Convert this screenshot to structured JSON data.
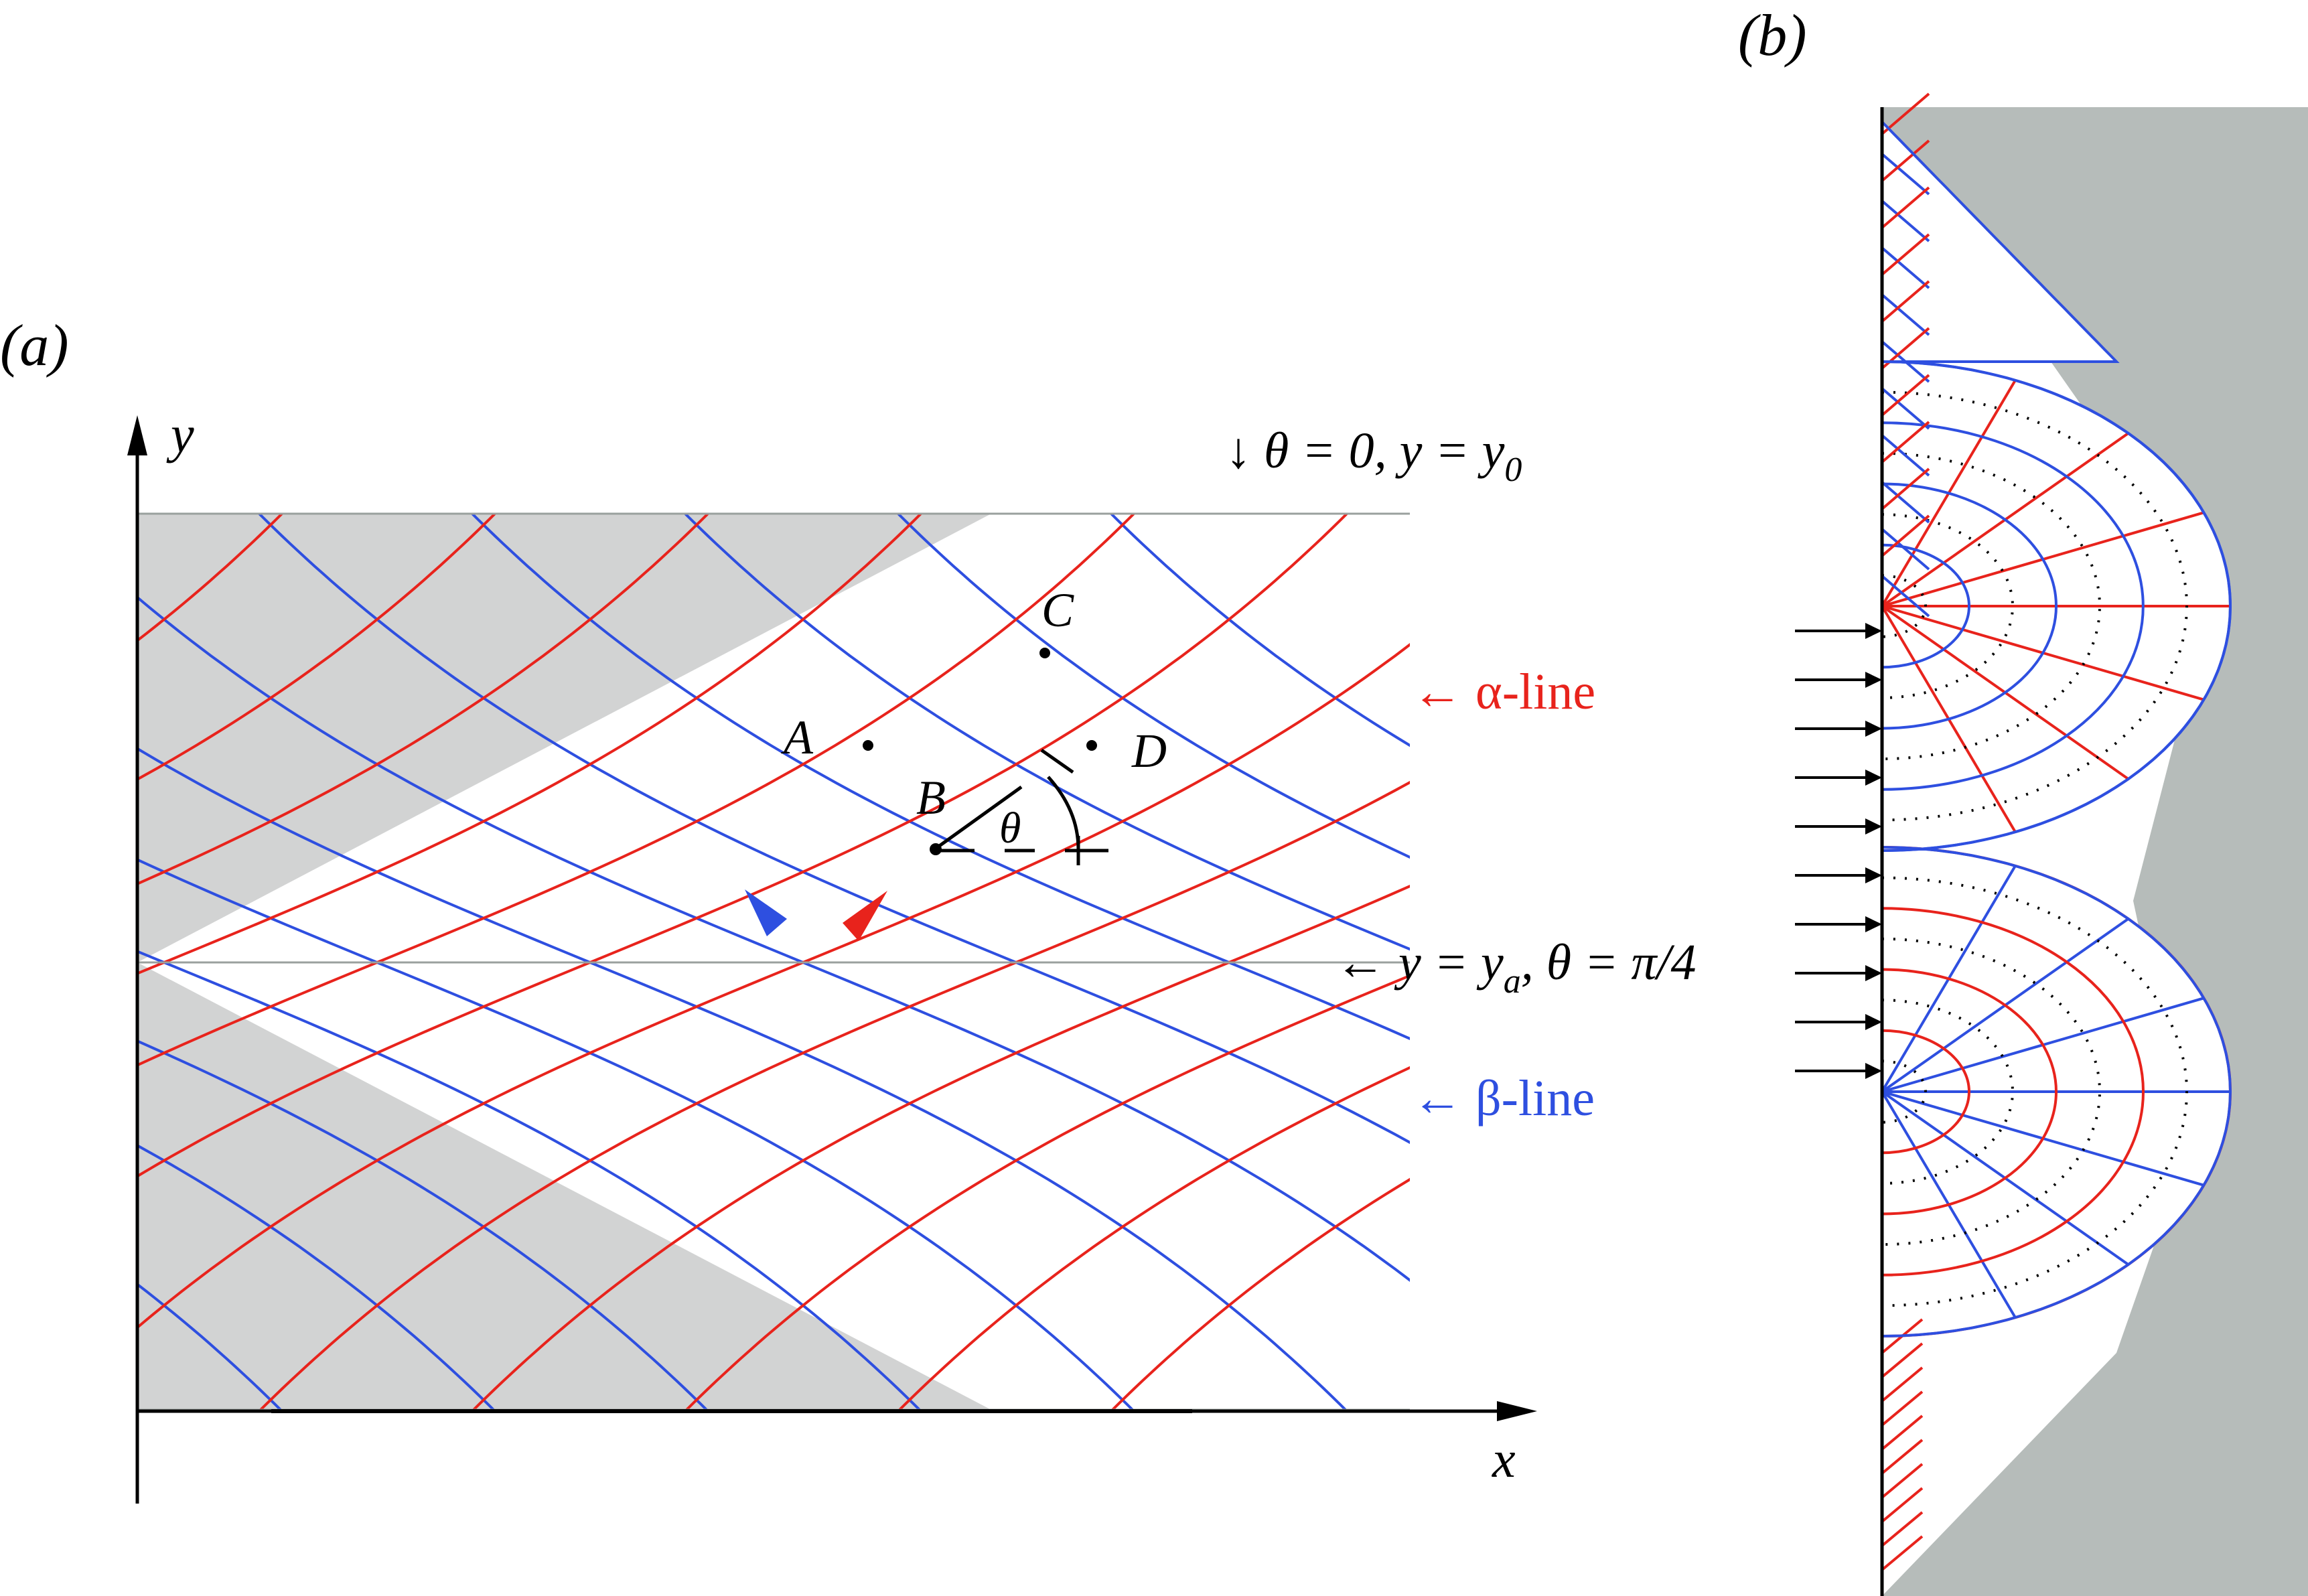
{
  "panel_a": {
    "tag": "(a)",
    "axis_y": "y",
    "axis_x": "x",
    "top_note": "↓ θ = 0, y = y",
    "top_note_sub": "0",
    "mid_note_1": "← y = y",
    "mid_note_sub": "a",
    "mid_note_2": ", θ = π/4",
    "alpha_label": "← α-line",
    "beta_label": "← β-line",
    "point_A": "A",
    "point_B": "B",
    "point_C": "C",
    "point_D": "D",
    "angle_label": "θ"
  },
  "panel_b": {
    "tag": "(b)"
  },
  "colors": {
    "alpha": "#e8231c",
    "beta": "#2e4fe0",
    "shade_a": "#d2d3d3",
    "shade_b": "#b6bcba",
    "axis": "#000000"
  }
}
